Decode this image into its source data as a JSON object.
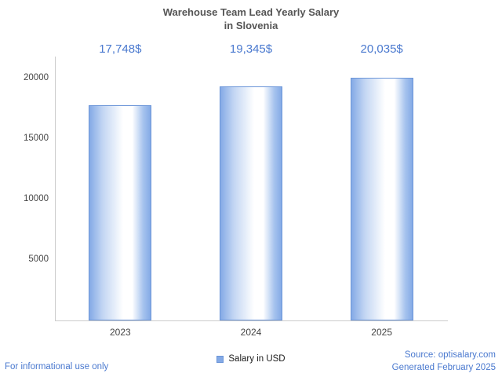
{
  "title": {
    "line1": "Warehouse Team Lead Yearly Salary",
    "line2": "in Slovenia"
  },
  "chart_data": {
    "type": "bar",
    "title": "Warehouse Team Lead Yearly Salary in Slovenia",
    "categories": [
      "2023",
      "2024",
      "2025"
    ],
    "values": [
      17748,
      19345,
      20035
    ],
    "value_labels": [
      "17,748$",
      "19,345$",
      "20,035$"
    ],
    "xlabel": "",
    "ylabel": "",
    "ylim": [
      0,
      21800
    ],
    "yticks": [
      5000,
      10000,
      15000,
      20000
    ],
    "grid": false,
    "legend": {
      "label": "Salary in USD",
      "position": "bottom"
    }
  },
  "footer": {
    "left_note": "For informational use only",
    "source_line1": "Source: optisalary.com",
    "source_line2": "Generated February 2025"
  },
  "colors": {
    "accent_blue": "#4a79cf",
    "bar_blue": "#84aae6",
    "bar_white": "#ffffff",
    "bar_border": "#6b95d8",
    "axis": "#cccccc",
    "title_text": "#555555",
    "tick_text": "#444444"
  }
}
